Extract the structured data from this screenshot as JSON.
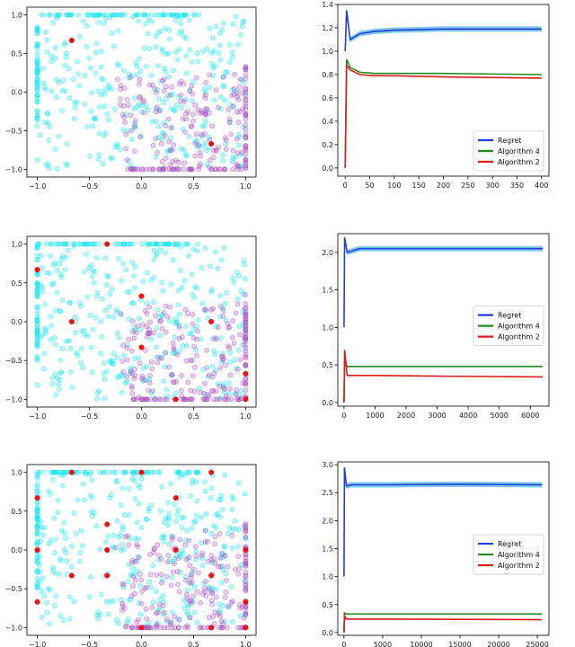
{
  "colors": {
    "cyan": "#22e5ee",
    "purple": "#a64fbf",
    "red": "#ee1111",
    "regret": "#1f3fd6",
    "regret_band": "#1a9ee0",
    "alg4": "#1c8a1c",
    "alg2": "#dd1a1a"
  },
  "chart_data": [
    {
      "type": "scatter",
      "x_ticks": [
        "−1.0",
        "−0.5",
        "0.0",
        "0.5",
        "1.0"
      ],
      "y_ticks": [
        "1.0",
        "0.5",
        "0.0",
        "−0.5",
        "−1.0"
      ],
      "xlim": [
        -1.1,
        1.1
      ],
      "ylim": [
        -1.1,
        1.1
      ],
      "series": [
        {
          "color_key": "cyan",
          "seed": 11,
          "n_random": 300
        },
        {
          "color_key": "purple",
          "seed": 29,
          "n_random": 150
        }
      ],
      "highlight_points": [
        [
          -0.67,
          0.67
        ],
        [
          0.67,
          -0.67
        ]
      ]
    },
    {
      "type": "line",
      "x_ticks": [
        0,
        50,
        100,
        150,
        200,
        250,
        300,
        350,
        400
      ],
      "y_ticks": [
        0.0,
        0.2,
        0.4,
        0.6,
        0.8,
        1.0,
        1.2,
        1.4
      ],
      "xlim": [
        -15,
        415
      ],
      "ylim": [
        -0.07,
        1.4
      ],
      "legend_position": "lower-right",
      "series": [
        {
          "name": "Regret",
          "color_key": "regret",
          "values": [
            [
              0,
              1.0
            ],
            [
              3,
              1.35
            ],
            [
              10,
              1.1
            ],
            [
              30,
              1.15
            ],
            [
              60,
              1.17
            ],
            [
              100,
              1.18
            ],
            [
              200,
              1.19
            ],
            [
              400,
              1.19
            ]
          ]
        },
        {
          "name": "Algorithm 4",
          "color_key": "alg4",
          "values": [
            [
              0,
              0.0
            ],
            [
              3,
              0.93
            ],
            [
              10,
              0.86
            ],
            [
              30,
              0.82
            ],
            [
              60,
              0.81
            ],
            [
              100,
              0.81
            ],
            [
              200,
              0.81
            ],
            [
              400,
              0.8
            ]
          ]
        },
        {
          "name": "Algorithm 2",
          "color_key": "alg2",
          "values": [
            [
              0,
              0.0
            ],
            [
              3,
              0.88
            ],
            [
              10,
              0.84
            ],
            [
              30,
              0.8
            ],
            [
              60,
              0.79
            ],
            [
              100,
              0.79
            ],
            [
              200,
              0.78
            ],
            [
              400,
              0.77
            ]
          ]
        }
      ]
    },
    {
      "type": "scatter",
      "x_ticks": [
        "−1.0",
        "−0.5",
        "0.0",
        "0.5",
        "1.0"
      ],
      "y_ticks": [
        "1.0",
        "0.5",
        "0.0",
        "−0.5",
        "−1.0"
      ],
      "xlim": [
        -1.1,
        1.1
      ],
      "ylim": [
        -1.1,
        1.1
      ],
      "series": [
        {
          "color_key": "cyan",
          "seed": 47,
          "n_random": 300
        },
        {
          "color_key": "purple",
          "seed": 53,
          "n_random": 150
        }
      ],
      "highlight_points": [
        [
          -0.33,
          1.0
        ],
        [
          -1.0,
          0.67
        ],
        [
          0.0,
          0.33
        ],
        [
          -0.67,
          0.0
        ],
        [
          0.67,
          0.0
        ],
        [
          0.0,
          -0.33
        ],
        [
          1.0,
          -0.67
        ],
        [
          0.33,
          -1.0
        ],
        [
          1.0,
          -1.0
        ]
      ]
    },
    {
      "type": "line",
      "x_ticks": [
        0,
        1000,
        2000,
        3000,
        4000,
        5000,
        6000
      ],
      "y_ticks": [
        0.0,
        0.5,
        1.0,
        1.5,
        2.0
      ],
      "xlim": [
        -200,
        6600
      ],
      "ylim": [
        -0.05,
        2.25
      ],
      "legend_position": "center-right",
      "series": [
        {
          "name": "Regret",
          "color_key": "regret",
          "values": [
            [
              0,
              1.0
            ],
            [
              20,
              2.2
            ],
            [
              100,
              2.0
            ],
            [
              500,
              2.05
            ],
            [
              1500,
              2.05
            ],
            [
              3000,
              2.05
            ],
            [
              6400,
              2.05
            ]
          ]
        },
        {
          "name": "Algorithm 4",
          "color_key": "alg4",
          "values": [
            [
              0,
              0.0
            ],
            [
              20,
              0.55
            ],
            [
              100,
              0.48
            ],
            [
              500,
              0.48
            ],
            [
              2000,
              0.48
            ],
            [
              6400,
              0.48
            ]
          ]
        },
        {
          "name": "Algorithm 2",
          "color_key": "alg2",
          "values": [
            [
              0,
              0.0
            ],
            [
              20,
              0.7
            ],
            [
              100,
              0.36
            ],
            [
              1000,
              0.36
            ],
            [
              3000,
              0.35
            ],
            [
              6400,
              0.34
            ]
          ]
        }
      ]
    },
    {
      "type": "scatter",
      "x_ticks": [
        "−1.0",
        "−0.5",
        "0.0",
        "0.5",
        "1.0"
      ],
      "y_ticks": [
        "1.0",
        "0.5",
        "0.0",
        "−0.5",
        "−1.0"
      ],
      "xlim": [
        -1.1,
        1.1
      ],
      "ylim": [
        -1.1,
        1.1
      ],
      "series": [
        {
          "color_key": "cyan",
          "seed": 71,
          "n_random": 300
        },
        {
          "color_key": "purple",
          "seed": 83,
          "n_random": 150
        }
      ],
      "highlight_points": [
        [
          -0.67,
          1.0
        ],
        [
          0.0,
          1.0
        ],
        [
          0.67,
          1.0
        ],
        [
          -1.0,
          0.67
        ],
        [
          0.33,
          0.67
        ],
        [
          -0.33,
          0.33
        ],
        [
          -1.0,
          0.0
        ],
        [
          -0.33,
          0.0
        ],
        [
          0.33,
          0.0
        ],
        [
          1.0,
          0.0
        ],
        [
          -0.67,
          -0.33
        ],
        [
          -0.33,
          -0.33
        ],
        [
          0.67,
          -0.33
        ],
        [
          -1.0,
          -0.67
        ],
        [
          1.0,
          -0.67
        ],
        [
          0.0,
          -1.0
        ],
        [
          0.67,
          -1.0
        ],
        [
          1.0,
          -1.0
        ]
      ]
    },
    {
      "type": "line",
      "x_ticks": [
        0,
        5000,
        10000,
        15000,
        20000,
        25000
      ],
      "y_ticks": [
        0.0,
        0.5,
        1.0,
        1.5,
        2.0,
        2.5,
        3.0
      ],
      "xlim": [
        -800,
        26500
      ],
      "ylim": [
        -0.05,
        3.05
      ],
      "legend_position": "center-right",
      "series": [
        {
          "name": "Regret",
          "color_key": "regret",
          "values": [
            [
              0,
              1.0
            ],
            [
              60,
              2.95
            ],
            [
              300,
              2.62
            ],
            [
              1000,
              2.64
            ],
            [
              5000,
              2.64
            ],
            [
              15000,
              2.65
            ],
            [
              25600,
              2.64
            ]
          ]
        },
        {
          "name": "Algorithm 4",
          "color_key": "alg4",
          "values": [
            [
              0,
              0.0
            ],
            [
              60,
              0.35
            ],
            [
              300,
              0.33
            ],
            [
              5000,
              0.33
            ],
            [
              25600,
              0.33
            ]
          ]
        },
        {
          "name": "Algorithm 2",
          "color_key": "alg2",
          "values": [
            [
              0,
              0.0
            ],
            [
              60,
              0.3
            ],
            [
              300,
              0.24
            ],
            [
              5000,
              0.24
            ],
            [
              25600,
              0.23
            ]
          ]
        }
      ]
    }
  ]
}
